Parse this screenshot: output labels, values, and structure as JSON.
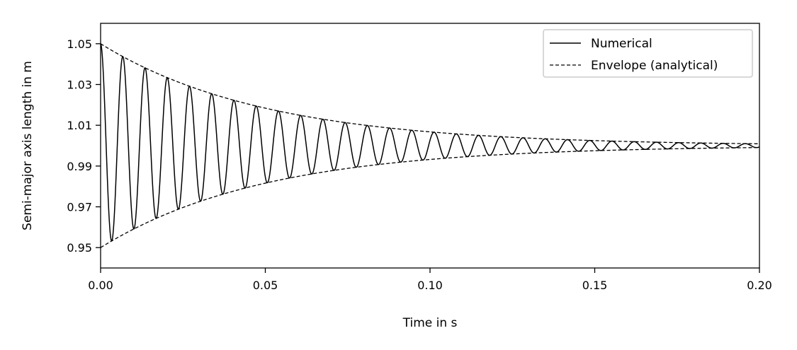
{
  "chart_data": {
    "type": "line",
    "title": "",
    "xlabel": "Time in s",
    "ylabel": "Semi-major axis length in m",
    "xlim": [
      0.0,
      0.2
    ],
    "ylim": [
      0.94,
      1.06
    ],
    "x_ticks": [
      "0.00",
      "0.05",
      "0.10",
      "0.15",
      "0.20"
    ],
    "y_ticks": [
      "0.95",
      "0.97",
      "0.99",
      "1.01",
      "1.03",
      "1.05"
    ],
    "grid": false,
    "legend_position": "top-right",
    "colors": {
      "line": "#000000",
      "background": "#ffffff",
      "legend_border": "#cccccc"
    },
    "series": [
      {
        "name": "Numerical",
        "style": "solid",
        "model": "1 + 0.05*exp(-t/0.05)*cos(2*pi*t/0.00675)",
        "samples": {
          "x": [
            0.0,
            0.00675,
            0.0135,
            0.03375,
            0.0675,
            0.10125,
            0.135,
            0.2
          ],
          "y": [
            1.05,
            1.0437,
            1.0382,
            1.0255,
            1.013,
            1.0066,
            1.0034,
            0.999
          ]
        }
      },
      {
        "name": "Envelope (analytical)",
        "style": "dashed",
        "upper": {
          "x": [
            0.0,
            0.05,
            0.1,
            0.15,
            0.2
          ],
          "y": [
            1.05,
            1.0184,
            1.0068,
            1.0025,
            1.0009
          ]
        },
        "lower": {
          "x": [
            0.0,
            0.05,
            0.1,
            0.15,
            0.2
          ],
          "y": [
            0.95,
            0.9816,
            0.9932,
            0.9975,
            0.9991
          ]
        }
      }
    ]
  }
}
